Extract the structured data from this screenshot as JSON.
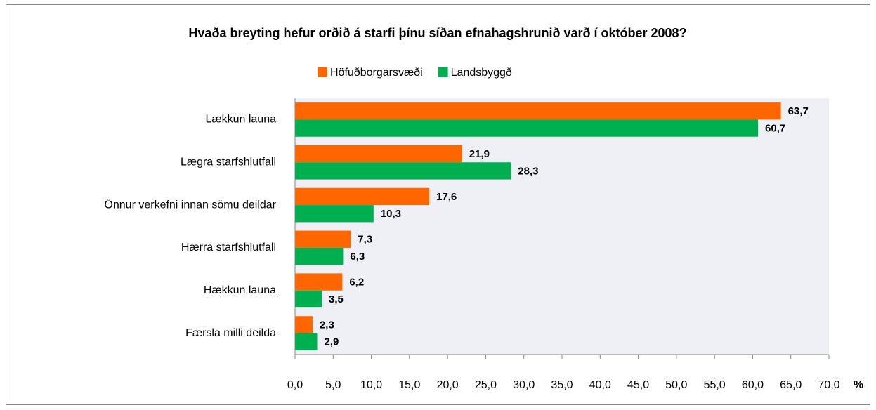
{
  "chart_data": {
    "type": "hbar",
    "title": "Hvaða breyting hefur orðið á starfi þínu síðan efnahagshrunið varð í október 2008?",
    "x_label": "%",
    "categories": [
      "Lækkun launa",
      "Lægra starfshlutfall",
      "Önnur verkefni innan sömu deildar",
      "Hærra starfshlutfall",
      "Hækkun launa",
      "Færsla milli deilda"
    ],
    "series": [
      {
        "name": "Höfuðborgarsvæði",
        "color": "#ff6600",
        "values": [
          63.7,
          21.9,
          17.6,
          7.3,
          6.2,
          2.3
        ],
        "value_labels": [
          "63,7",
          "21,9",
          "17,6",
          "7,3",
          "6,2",
          "2,3"
        ]
      },
      {
        "name": "Landsbyggð",
        "color": "#00b050",
        "values": [
          60.7,
          28.3,
          10.3,
          6.3,
          3.5,
          2.9
        ],
        "value_labels": [
          "60,7",
          "28,3",
          "10,3",
          "6,3",
          "3,5",
          "2,9"
        ]
      }
    ],
    "xlim": [
      0,
      70
    ],
    "xticks": [
      {
        "value": 0,
        "label": "0,0"
      },
      {
        "value": 5,
        "label": "5,0"
      },
      {
        "value": 10,
        "label": "10,0"
      },
      {
        "value": 15,
        "label": "15,0"
      },
      {
        "value": 20,
        "label": "20,0"
      },
      {
        "value": 25,
        "label": "25,0"
      },
      {
        "value": 30,
        "label": "30,0"
      },
      {
        "value": 35,
        "label": "35,0"
      },
      {
        "value": 40,
        "label": "40,0"
      },
      {
        "value": 45,
        "label": "45,0"
      },
      {
        "value": 50,
        "label": "50,0"
      },
      {
        "value": 55,
        "label": "55,0"
      },
      {
        "value": 60,
        "label": "60,0"
      },
      {
        "value": 65,
        "label": "65,0"
      },
      {
        "value": 70,
        "label": "70,0"
      }
    ],
    "legend": "top"
  }
}
